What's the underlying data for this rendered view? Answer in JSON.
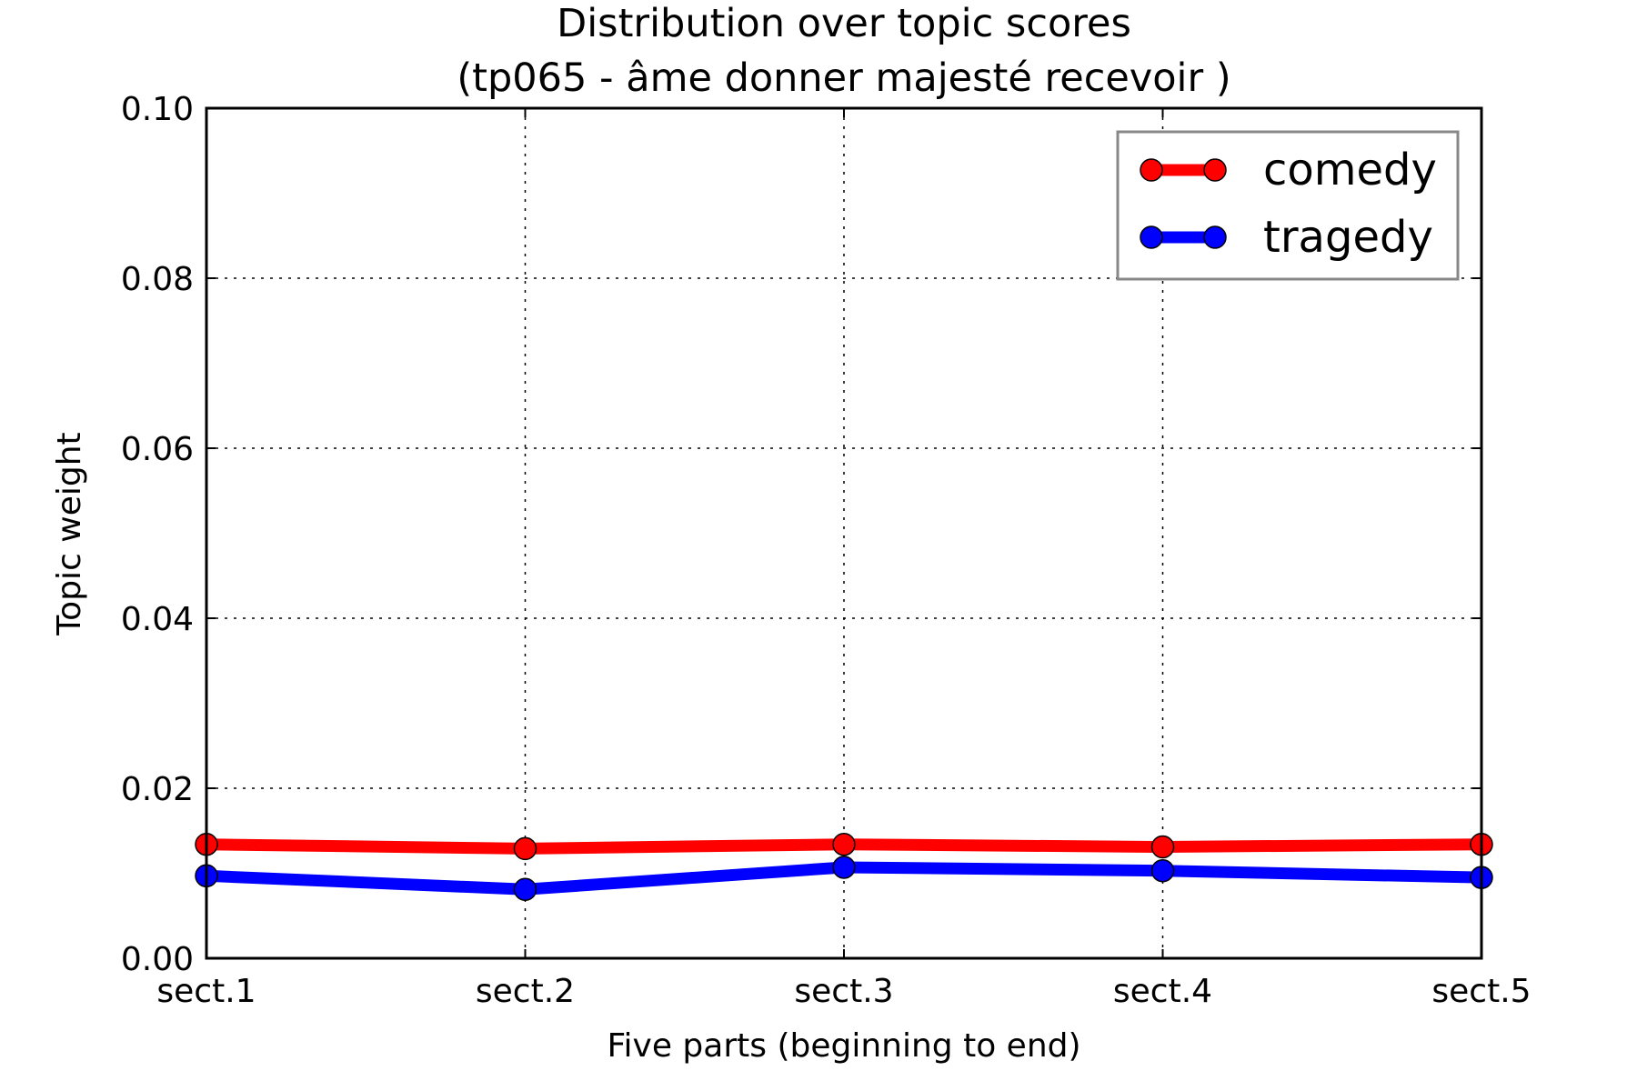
{
  "chart_data": {
    "type": "line",
    "title": "Distribution over topic scores",
    "subtitle": "(tp065 - âme donner majesté recevoir )",
    "xlabel": "Five parts (beginning to end)",
    "ylabel": "Topic weight",
    "categories": [
      "sect.1",
      "sect.2",
      "sect.3",
      "sect.4",
      "sect.5"
    ],
    "ylim": [
      0,
      0.1
    ],
    "yticks": [
      "0.00",
      "0.02",
      "0.04",
      "0.06",
      "0.08",
      "0.10"
    ],
    "grid": true,
    "legend_position": "top-right",
    "series": [
      {
        "name": "comedy",
        "color": "#ff0000",
        "values": [
          0.0134,
          0.0129,
          0.0134,
          0.0131,
          0.0134
        ]
      },
      {
        "name": "tragedy",
        "color": "#0000ff",
        "values": [
          0.0097,
          0.0081,
          0.0107,
          0.0103,
          0.0095
        ]
      }
    ]
  }
}
